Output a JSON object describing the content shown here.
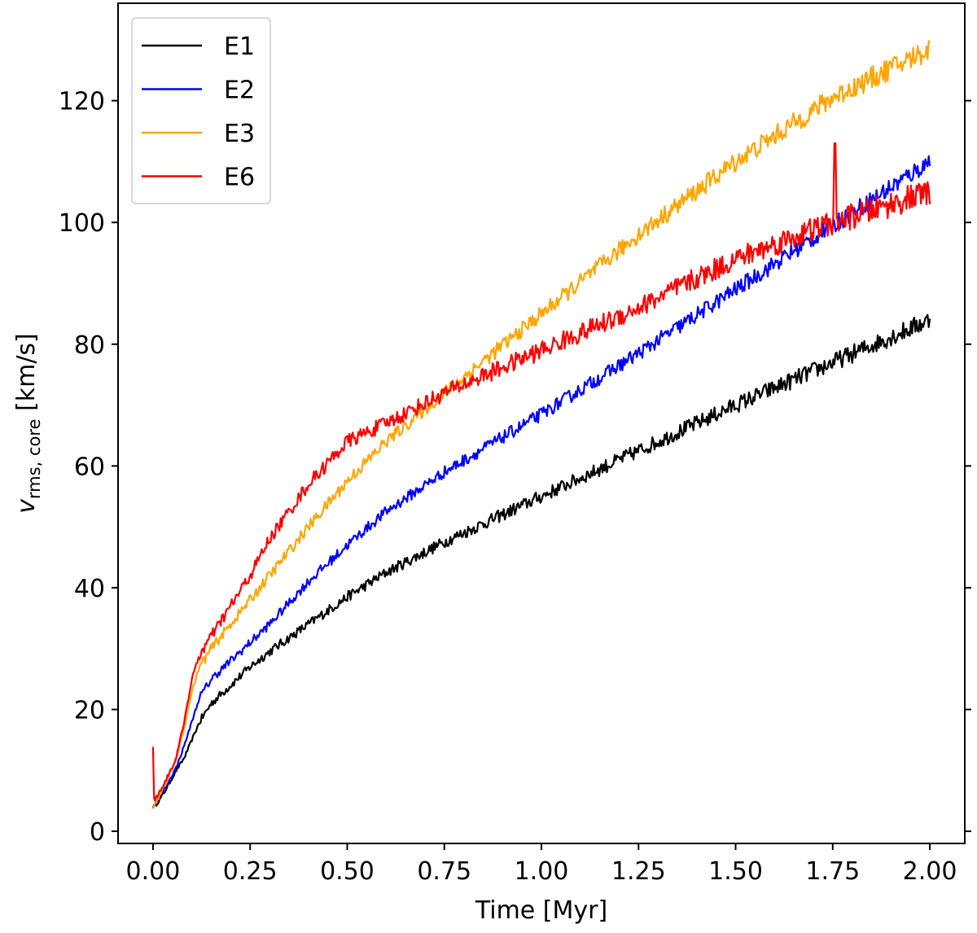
{
  "chart_data": {
    "type": "line",
    "title": "",
    "xlabel": "Time [Myr]",
    "ylabel_main": "v",
    "ylabel_sub": "rms, core",
    "ylabel_unit": " [km/s]",
    "xlim": [
      -0.09,
      2.09
    ],
    "ylim": [
      -2,
      136
    ],
    "xticks": [
      0.0,
      0.25,
      0.5,
      0.75,
      1.0,
      1.25,
      1.5,
      1.75,
      2.0
    ],
    "xtick_labels": [
      "0.00",
      "0.25",
      "0.50",
      "0.75",
      "1.00",
      "1.25",
      "1.50",
      "1.75",
      "2.00"
    ],
    "yticks": [
      0,
      20,
      40,
      60,
      80,
      100,
      120
    ],
    "ytick_labels": [
      "0",
      "20",
      "40",
      "60",
      "80",
      "100",
      "120"
    ],
    "grid": false,
    "legend_position": "top-left",
    "series": [
      {
        "name": "E1",
        "color": "#000000",
        "noise": 1.0,
        "x": [
          0.0,
          0.01,
          0.03,
          0.06,
          0.08,
          0.1,
          0.12,
          0.15,
          0.2,
          0.25,
          0.3,
          0.4,
          0.5,
          0.6,
          0.75,
          1.0,
          1.25,
          1.5,
          1.75,
          2.0
        ],
        "y": [
          4,
          4.5,
          6.5,
          10,
          12,
          15,
          18,
          21,
          24,
          27,
          29.5,
          34,
          38.5,
          42.5,
          47.5,
          55,
          62.5,
          70,
          77,
          84
        ]
      },
      {
        "name": "E2",
        "color": "#0000ff",
        "noise": 1.0,
        "x": [
          0.0,
          0.01,
          0.03,
          0.06,
          0.08,
          0.1,
          0.12,
          0.15,
          0.2,
          0.25,
          0.3,
          0.4,
          0.5,
          0.6,
          0.75,
          1.0,
          1.25,
          1.5,
          1.75,
          2.0
        ],
        "y": [
          4,
          5,
          7,
          10.5,
          14,
          18,
          22,
          25,
          28,
          31,
          34,
          41,
          47,
          52.5,
          59,
          68.5,
          78.5,
          89,
          99.5,
          110
        ]
      },
      {
        "name": "E3",
        "color": "#ffa500",
        "noise": 1.2,
        "x": [
          0.0,
          0.01,
          0.03,
          0.06,
          0.08,
          0.1,
          0.12,
          0.15,
          0.2,
          0.25,
          0.3,
          0.4,
          0.5,
          0.6,
          0.75,
          1.0,
          1.25,
          1.5,
          1.75,
          2.0
        ],
        "y": [
          4,
          5,
          7.5,
          12,
          17,
          23,
          27,
          30,
          34,
          38,
          42,
          50,
          57.5,
          64,
          72,
          85,
          98,
          110,
          120.5,
          128.5
        ]
      },
      {
        "name": "E6",
        "color": "#ff0000",
        "noise": 1.4,
        "spike": [
          1.755,
          113
        ],
        "x": [
          0.0,
          0.003,
          0.008,
          0.03,
          0.06,
          0.08,
          0.1,
          0.12,
          0.15,
          0.2,
          0.25,
          0.3,
          0.4,
          0.5,
          0.6,
          0.75,
          1.0,
          1.25,
          1.5,
          1.75,
          2.0
        ],
        "y": [
          14,
          5,
          5.5,
          8,
          12,
          18,
          25,
          29,
          32,
          37,
          42,
          48,
          57,
          64,
          67,
          72,
          79,
          86,
          94,
          100,
          105
        ]
      }
    ]
  }
}
